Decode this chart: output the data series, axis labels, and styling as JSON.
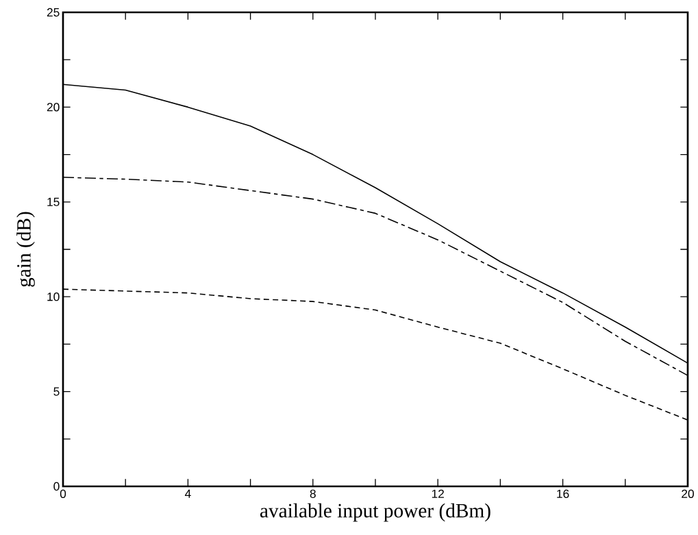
{
  "chart_data": {
    "type": "line",
    "xlabel": "available input power (dBm)",
    "ylabel": "gain (dB)",
    "x": [
      0,
      2,
      4,
      6,
      8,
      10,
      12,
      14,
      16,
      18,
      20
    ],
    "series": [
      {
        "color": "#000000",
        "line_style": "solid",
        "values": [
          21.2,
          20.9,
          20.0,
          19.0,
          17.5,
          15.75,
          13.85,
          11.85,
          10.2,
          8.4,
          6.5
        ]
      },
      {
        "color": "#000000",
        "line_style": "dashdot",
        "values": [
          16.3,
          16.2,
          16.05,
          15.6,
          15.15,
          14.4,
          13.0,
          11.35,
          9.7,
          7.65,
          5.85
        ]
      },
      {
        "color": "#000000",
        "line_style": "dashed",
        "values": [
          10.4,
          10.3,
          10.2,
          9.9,
          9.75,
          9.3,
          8.4,
          7.55,
          6.2,
          4.8,
          3.5
        ]
      }
    ],
    "xlim": [
      0,
      20
    ],
    "ylim": [
      0,
      25
    ],
    "xticks": [
      0,
      {
        "value": 2,
        "label": null
      },
      4,
      {
        "value": 6,
        "label": null
      },
      8,
      {
        "value": 10,
        "label": null
      },
      12,
      {
        "value": 14,
        "label": null
      },
      16,
      {
        "value": 18,
        "label": null
      },
      20
    ],
    "yticks": [
      0,
      {
        "value": 2.5,
        "label": null
      },
      5,
      {
        "value": 7.5,
        "label": null
      },
      10,
      {
        "value": 12.5,
        "label": null
      },
      15,
      {
        "value": 17.5,
        "label": null
      },
      20,
      {
        "value": 22.5,
        "label": null
      },
      25
    ],
    "grid": false,
    "marker": "none"
  }
}
